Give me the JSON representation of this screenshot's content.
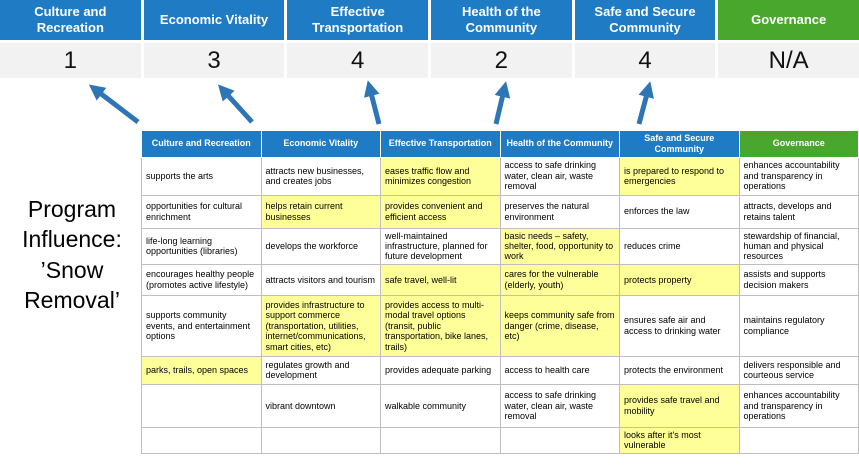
{
  "program_label": "Program Influence: ’Snow Removal’",
  "categories": [
    {
      "label": "Culture and Recreation",
      "score": "1",
      "theme": "blue"
    },
    {
      "label": "Economic Vitality",
      "score": "3",
      "theme": "blue"
    },
    {
      "label": "Effective Transportation",
      "score": "4",
      "theme": "blue"
    },
    {
      "label": "Health of the Community",
      "score": "2",
      "theme": "blue"
    },
    {
      "label": "Safe and Secure Community",
      "score": "4",
      "theme": "blue"
    },
    {
      "label": "Governance",
      "score": "N/A",
      "theme": "green"
    }
  ],
  "table": {
    "columns": [
      "Culture and Recreation",
      "Economic Vitality",
      "Effective Transportation",
      "Health of the Community",
      "Safe and Secure Community",
      "Governance"
    ],
    "rows": [
      [
        {
          "t": "supports the arts"
        },
        {
          "t": "attracts new businesses, and creates jobs"
        },
        {
          "t": "eases traffic flow and minimizes congestion",
          "hl": true
        },
        {
          "t": "access to safe drinking water, clean air, waste removal"
        },
        {
          "t": "is prepared to respond to emergencies",
          "hl": true
        },
        {
          "t": "enhances accountability and transparency in operations"
        }
      ],
      [
        {
          "t": "opportunities for cultural enrichment"
        },
        {
          "t": "helps retain current businesses",
          "hl": true
        },
        {
          "t": "provides convenient and efficient access",
          "hl": true
        },
        {
          "t": "preserves the natural environment"
        },
        {
          "t": "enforces the law"
        },
        {
          "t": "attracts, develops and retains talent"
        }
      ],
      [
        {
          "t": "life-long learning opportunities (libraries)"
        },
        {
          "t": "develops the workforce"
        },
        {
          "t": "well-maintained infrastructure, planned for future development"
        },
        {
          "t": "basic needs – safety, shelter, food, opportunity to work",
          "hl": true
        },
        {
          "t": "reduces crime"
        },
        {
          "t": "stewardship of financial, human and physical resources"
        }
      ],
      [
        {
          "t": "encourages healthy people (promotes active lifestyle)"
        },
        {
          "t": "attracts visitors and tourism"
        },
        {
          "t": "safe travel, well-lit",
          "hl": true
        },
        {
          "t": "cares for the vulnerable (elderly, youth)",
          "hl": true
        },
        {
          "t": "protects property",
          "hl": true
        },
        {
          "t": "assists and supports decision makers"
        }
      ],
      [
        {
          "t": "supports community events, and entertainment options"
        },
        {
          "t": "provides infrastructure to support commerce (transportation, utilities, internet/communications, smart cities, etc)",
          "hl": true
        },
        {
          "t": "provides access to multi-modal travel options (transit, public transportation, bike lanes, trails)",
          "hl": true
        },
        {
          "t": "keeps community safe from danger (crime, disease, etc)",
          "hl": true
        },
        {
          "t": "ensures safe air and access to drinking water"
        },
        {
          "t": "maintains regulatory compliance"
        }
      ],
      [
        {
          "t": "parks, trails, open spaces",
          "hl": true
        },
        {
          "t": "regulates growth and development"
        },
        {
          "t": "provides adequate parking"
        },
        {
          "t": "access to health care"
        },
        {
          "t": "protects the environment"
        },
        {
          "t": "delivers responsible and courteous service"
        }
      ],
      [
        {
          "t": ""
        },
        {
          "t": "vibrant downtown"
        },
        {
          "t": "walkable community"
        },
        {
          "t": "access to safe drinking water, clean air, waste removal"
        },
        {
          "t": "provides safe travel and mobility",
          "hl": true
        },
        {
          "t": "enhances accountability and transparency in operations"
        }
      ],
      [
        {
          "t": ""
        },
        {
          "t": ""
        },
        {
          "t": ""
        },
        {
          "t": ""
        },
        {
          "t": "looks after it's most vulnerable",
          "hl": true
        },
        {
          "t": ""
        }
      ]
    ]
  },
  "colors": {
    "blue_header": "#1F7CC4",
    "green_header": "#4AA72E",
    "highlight": "#FFFF99",
    "arrow": "#2E75B6",
    "score_bg": "#F2F2F2"
  }
}
